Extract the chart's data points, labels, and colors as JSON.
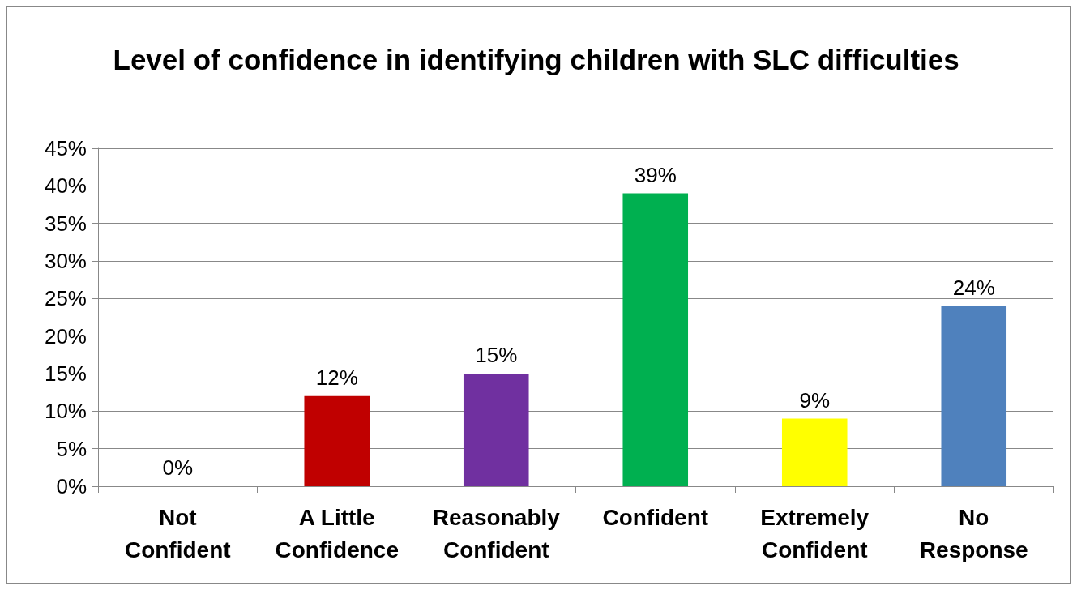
{
  "chart_data": {
    "type": "bar",
    "title": "Level of confidence in identifying children with SLC difficulties",
    "categories": [
      "Not\nConfident",
      "A Little\nConfidence",
      "Reasonably\nConfident",
      "Confident",
      "Extremely\nConfident",
      "No\nResponse"
    ],
    "values": [
      0,
      12,
      15,
      39,
      9,
      24
    ],
    "colors": [
      "#4f81bd",
      "#c00000",
      "#7030a0",
      "#00b050",
      "#ffff00",
      "#4f81bd"
    ],
    "value_labels": [
      "0%",
      "12%",
      "15%",
      "39%",
      "9%",
      "24%"
    ],
    "ylim": [
      0,
      45
    ],
    "yticks": [
      {
        "value": 0,
        "label": "0%"
      },
      {
        "value": 5,
        "label": "5%"
      },
      {
        "value": 10,
        "label": "10%"
      },
      {
        "value": 15,
        "label": "15%"
      },
      {
        "value": 20,
        "label": "20%"
      },
      {
        "value": 25,
        "label": "25%"
      },
      {
        "value": 30,
        "label": "30%"
      },
      {
        "value": 35,
        "label": "35%"
      },
      {
        "value": 40,
        "label": "40%"
      },
      {
        "value": 45,
        "label": "45%"
      }
    ],
    "grid": "y"
  }
}
